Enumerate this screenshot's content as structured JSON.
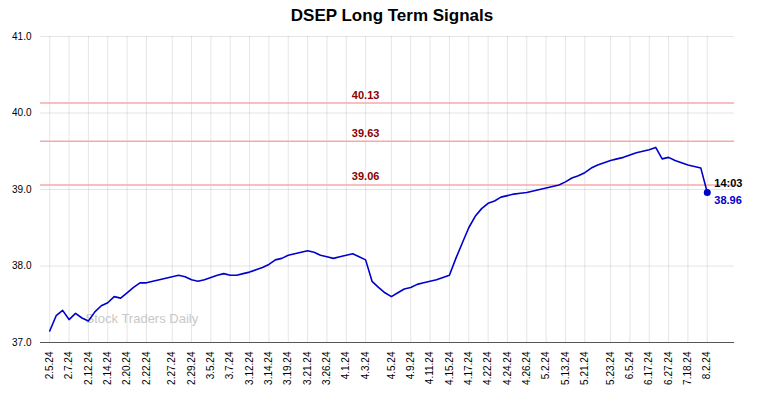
{
  "chart_data": {
    "type": "line",
    "title": "DSEP Long Term Signals",
    "color": "#0000cc",
    "grid": true,
    "ylim": [
      37,
      41
    ],
    "yticks": [
      37,
      38,
      39,
      40,
      41
    ],
    "categories": [
      "2.5.24",
      null,
      null,
      "2.7.24",
      null,
      null,
      "2.12.24",
      null,
      null,
      "2.14.24",
      null,
      null,
      "2.20.24",
      null,
      null,
      "2.22.24",
      null,
      null,
      null,
      "2.27.24",
      null,
      null,
      "2.29.24",
      null,
      null,
      "3.5.24",
      null,
      null,
      "3.7.24",
      null,
      null,
      "3.12.24",
      null,
      null,
      "3.14.24",
      null,
      null,
      "3.19.24",
      null,
      null,
      "3.21.24",
      null,
      null,
      "3.26.24",
      null,
      null,
      "4.1.24",
      null,
      null,
      "4.3.24",
      null,
      null,
      null,
      "4.5.24",
      null,
      null,
      "4.9.24",
      null,
      null,
      "4.11.24",
      null,
      null,
      "4.15.24",
      null,
      null,
      "4.17.24",
      null,
      null,
      "4.22.24",
      null,
      null,
      "4.24.24",
      null,
      null,
      "4.26.24",
      null,
      null,
      "5.2.24",
      null,
      null,
      "5.13.24",
      null,
      null,
      "5.21.24",
      null,
      null,
      null,
      "5.23.24",
      null,
      null,
      "6.5.24",
      null,
      null,
      "6.17.24",
      null,
      null,
      "6.27.24",
      null,
      null,
      "7.18.24",
      null,
      null,
      "8.2.24"
    ],
    "values": [
      37.15,
      37.35,
      37.42,
      37.3,
      37.38,
      37.32,
      37.28,
      37.4,
      37.48,
      37.52,
      37.6,
      37.58,
      37.65,
      37.72,
      37.78,
      37.78,
      37.8,
      37.82,
      37.84,
      37.86,
      37.88,
      37.86,
      37.82,
      37.8,
      37.82,
      37.85,
      37.88,
      37.9,
      37.88,
      37.88,
      37.9,
      37.92,
      37.95,
      37.98,
      38.02,
      38.08,
      38.1,
      38.14,
      38.16,
      38.18,
      38.2,
      38.18,
      38.14,
      38.12,
      38.1,
      38.12,
      38.14,
      38.16,
      38.12,
      38.08,
      37.8,
      37.72,
      37.65,
      37.6,
      37.65,
      37.7,
      37.72,
      37.76,
      37.78,
      37.8,
      37.82,
      37.85,
      37.88,
      38.1,
      38.3,
      38.5,
      38.65,
      38.75,
      38.82,
      38.85,
      38.9,
      38.92,
      38.94,
      38.95,
      38.96,
      38.98,
      39.0,
      39.02,
      39.04,
      39.06,
      39.1,
      39.15,
      39.18,
      39.22,
      39.28,
      39.32,
      39.35,
      39.38,
      39.4,
      39.42,
      39.45,
      39.48,
      39.5,
      39.52,
      39.55,
      39.4,
      39.42,
      39.38,
      39.35,
      39.32,
      39.3,
      39.28,
      38.96
    ],
    "annotations": [
      {
        "type": "hline",
        "y": 40.13,
        "text": "40.13",
        "color": "#8b0000",
        "line_color": "#f5aaaa"
      },
      {
        "type": "hline",
        "y": 39.63,
        "text": "39.63",
        "color": "#8b0000",
        "line_color": "#f5aaaa"
      },
      {
        "type": "hline",
        "y": 39.06,
        "text": "39.06",
        "color": "#8b0000",
        "line_color": "#f5aaaa"
      },
      {
        "type": "point",
        "index": 102,
        "text": "14:03",
        "color": "#000000"
      },
      {
        "type": "point",
        "index": 102,
        "text": "38.96",
        "color": "#0000cc"
      },
      {
        "type": "watermark",
        "text": "Stock Traders Daily",
        "color": "#c8c8c8"
      }
    ]
  }
}
